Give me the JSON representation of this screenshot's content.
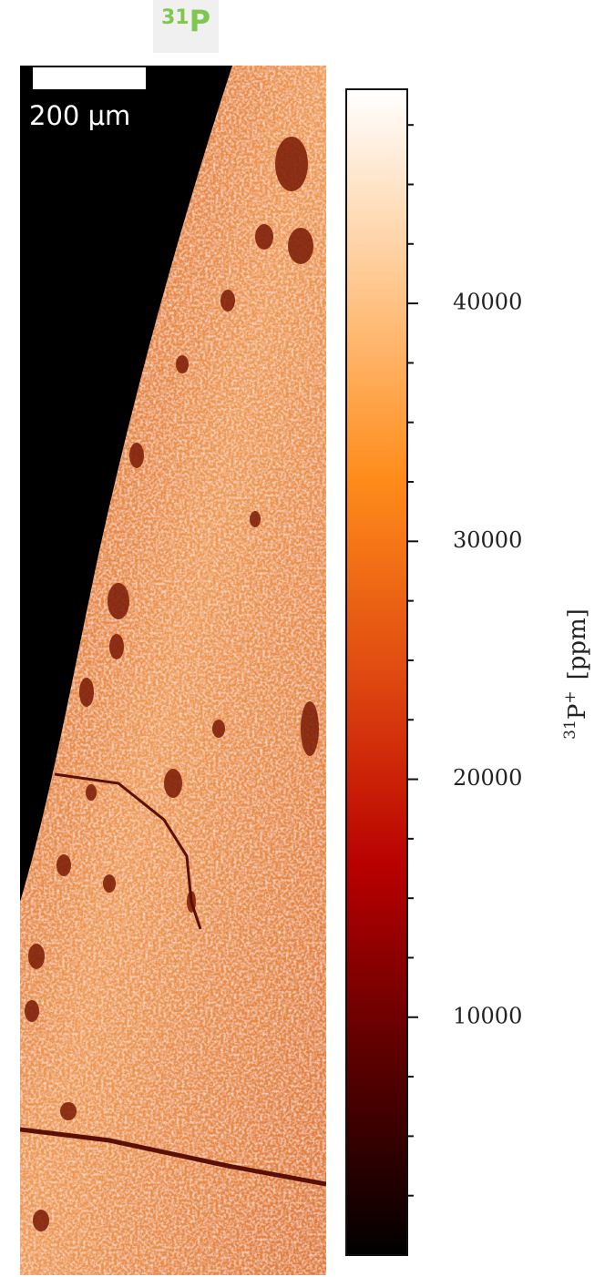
{
  "chart_data": {
    "type": "image",
    "title": {
      "mass": "31",
      "element": "P"
    },
    "scale_bar_label": "200 μm",
    "colorbar_label": {
      "mass": "31",
      "element": "P",
      "charge": "+",
      "unit": "[ppm]"
    },
    "colormap": [
      "#000000",
      "#5a0000",
      "#b80000",
      "#e04a10",
      "#ff8c1a",
      "#ffc890",
      "#ffffff"
    ],
    "ylim": [
      0,
      49000
    ],
    "yticks": [
      10000,
      20000,
      30000,
      40000
    ],
    "minor_ticks": [
      2500,
      5000,
      7500,
      12500,
      15000,
      17500,
      22500,
      25000,
      27500,
      32500,
      35000,
      37500,
      42500,
      45000,
      47500
    ]
  }
}
